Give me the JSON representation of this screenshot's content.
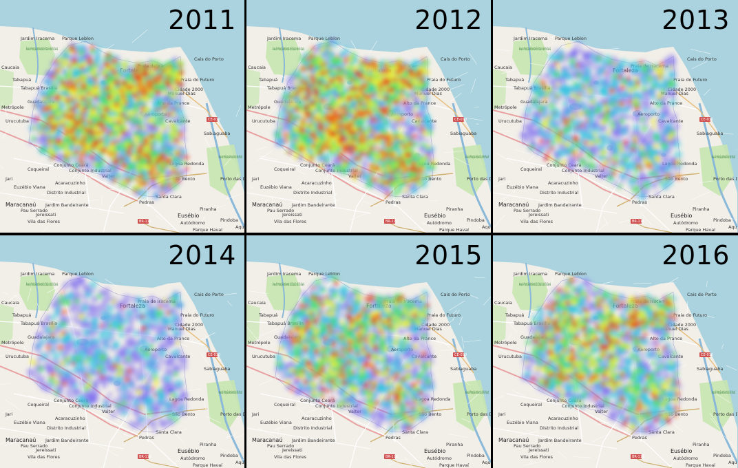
{
  "panels": [
    {
      "year": "2011",
      "intensity": 0.95
    },
    {
      "year": "2012",
      "intensity": 1.0
    },
    {
      "year": "2013",
      "intensity": 0.45
    },
    {
      "year": "2014",
      "intensity": 0.28
    },
    {
      "year": "2015",
      "intensity": 0.7
    },
    {
      "year": "2016",
      "intensity": 0.75
    }
  ],
  "map_labels": {
    "jardim_iracema": "Jardim Iracema",
    "parque_leblon": "Parque Leblon",
    "apa": "Área de Proteção Ambiental do Estuário do Rio Ceará",
    "caucaia": "Caucaia",
    "tabapua": "Tabapuá",
    "tabapua_brasilia": "Tabapuá Brasília",
    "metropole": "Metrópole",
    "guadalajara": "Guadalajara",
    "urucutuba": "Urucutuba",
    "fortaleza": "Fortaleza",
    "praia_iracema": "Praia de Iracema",
    "cais_porto": "Cais do Porto",
    "praia_futuro": "Praia do Futuro",
    "manuel_dias": "Manuel Dias",
    "cidade_2000": "Cidade 2000",
    "alto_prance": "Alto da Prance",
    "aeroporto": "Aeroporto",
    "cavalcante": "Cavalcante",
    "sabiaguaba": "Sabiaguaba",
    "ce010": "CE-010",
    "jari": "Jari",
    "coqueiral": "Coqueiral",
    "conjunto_ceara": "Conjunto Ceará",
    "conjunto_industrial": "Conjunto Industrial",
    "valter": "Valter",
    "lagoa_redonda": "Lagoa Redonda",
    "sao_bento": "São Bento",
    "apa_pacoti": "Área de Proteção Ambiental do Rio Pacoti",
    "porto_das_dunas": "Porto das Dunas",
    "euzebio_viana": "Euzébio Viana",
    "acaracuzinho": "Acaracuzinho",
    "distrito_industrial": "Distrito Industrial",
    "pedras": "Pedras",
    "santa_clara": "Santa Clara",
    "maracanau": "Maracanaú",
    "jardim_bandeirante": "Jardim Bandeirante",
    "pau_serrado": "Pau Serrado",
    "jereissati": "Jereissati",
    "vila_flores": "Vila das Flores",
    "eusebio": "Eusébio",
    "autodromo": "Autódromo",
    "piranha": "Piranha",
    "br116": "BR-116",
    "parque_havai": "Parque Havaí",
    "pindoba": "Pindoba",
    "aquiraz": "Aqu"
  },
  "colors": {
    "water": "#aad3df",
    "land": "#f2efe9",
    "park": "#c8e6b0",
    "low": "#7b6cf0",
    "mid_low": "#30c8e0",
    "mid": "#50e060",
    "mid_high": "#f0f030",
    "high": "#f07020",
    "peak": "#e83010"
  }
}
